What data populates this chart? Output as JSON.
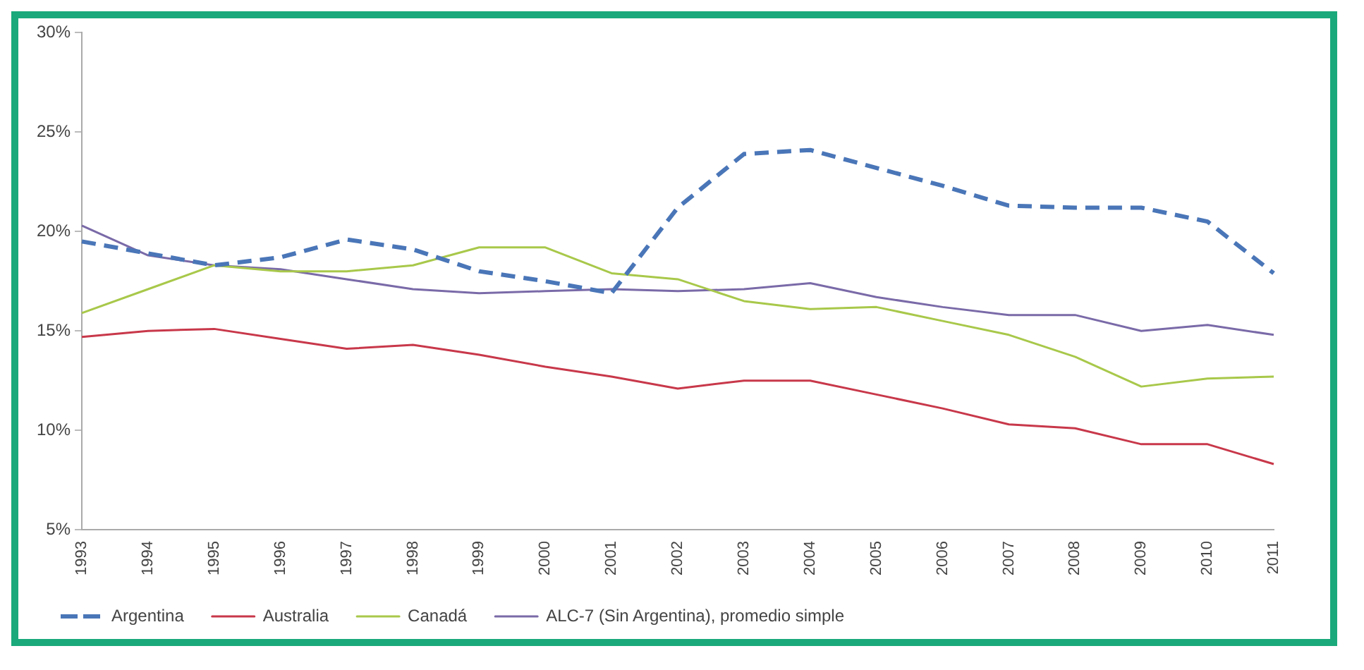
{
  "chart_data": {
    "type": "line",
    "categories": [
      "1993",
      "1994",
      "1995",
      "1996",
      "1997",
      "1998",
      "1999",
      "2000",
      "2001",
      "2002",
      "2003",
      "2004",
      "2005",
      "2006",
      "2007",
      "2008",
      "2009",
      "2010",
      "2011"
    ],
    "series": [
      {
        "name": "Argentina",
        "color": "#4a76b8",
        "line_style": "dashed",
        "values": [
          19.5,
          18.9,
          18.3,
          18.7,
          19.6,
          19.1,
          18.0,
          17.5,
          16.9,
          21.2,
          23.9,
          24.1,
          23.2,
          22.3,
          21.3,
          21.2,
          21.2,
          20.5,
          17.9
        ]
      },
      {
        "name": "Australia",
        "color": "#c8384a",
        "line_style": "solid",
        "values": [
          14.7,
          15.0,
          15.1,
          14.6,
          14.1,
          14.3,
          13.8,
          13.2,
          12.7,
          12.1,
          12.5,
          12.5,
          11.8,
          11.1,
          10.3,
          10.1,
          9.3,
          9.3,
          8.3
        ]
      },
      {
        "name": "Canadá",
        "color": "#a8c84a",
        "line_style": "solid",
        "values": [
          15.9,
          17.1,
          18.3,
          18.0,
          18.0,
          18.3,
          19.2,
          19.2,
          17.9,
          17.6,
          16.5,
          16.1,
          16.2,
          15.5,
          14.8,
          13.7,
          12.2,
          12.6,
          12.7
        ]
      },
      {
        "name": "ALC-7 (Sin Argentina), promedio simple",
        "color": "#7a6aa8",
        "line_style": "solid",
        "values": [
          20.3,
          18.8,
          18.3,
          18.1,
          17.6,
          17.1,
          16.9,
          17.0,
          17.1,
          17.0,
          17.1,
          17.4,
          16.7,
          16.2,
          15.8,
          15.8,
          15.0,
          15.3,
          14.8
        ]
      }
    ],
    "ylim": [
      5,
      30
    ],
    "yticks": [
      {
        "value": 5,
        "label": "5%"
      },
      {
        "value": 10,
        "label": "10%"
      },
      {
        "value": 15,
        "label": "15%"
      },
      {
        "value": 20,
        "label": "20%"
      },
      {
        "value": 25,
        "label": "25%"
      },
      {
        "value": 30,
        "label": "30%"
      }
    ],
    "grid": false,
    "legend": "bottom",
    "marker": "none"
  }
}
